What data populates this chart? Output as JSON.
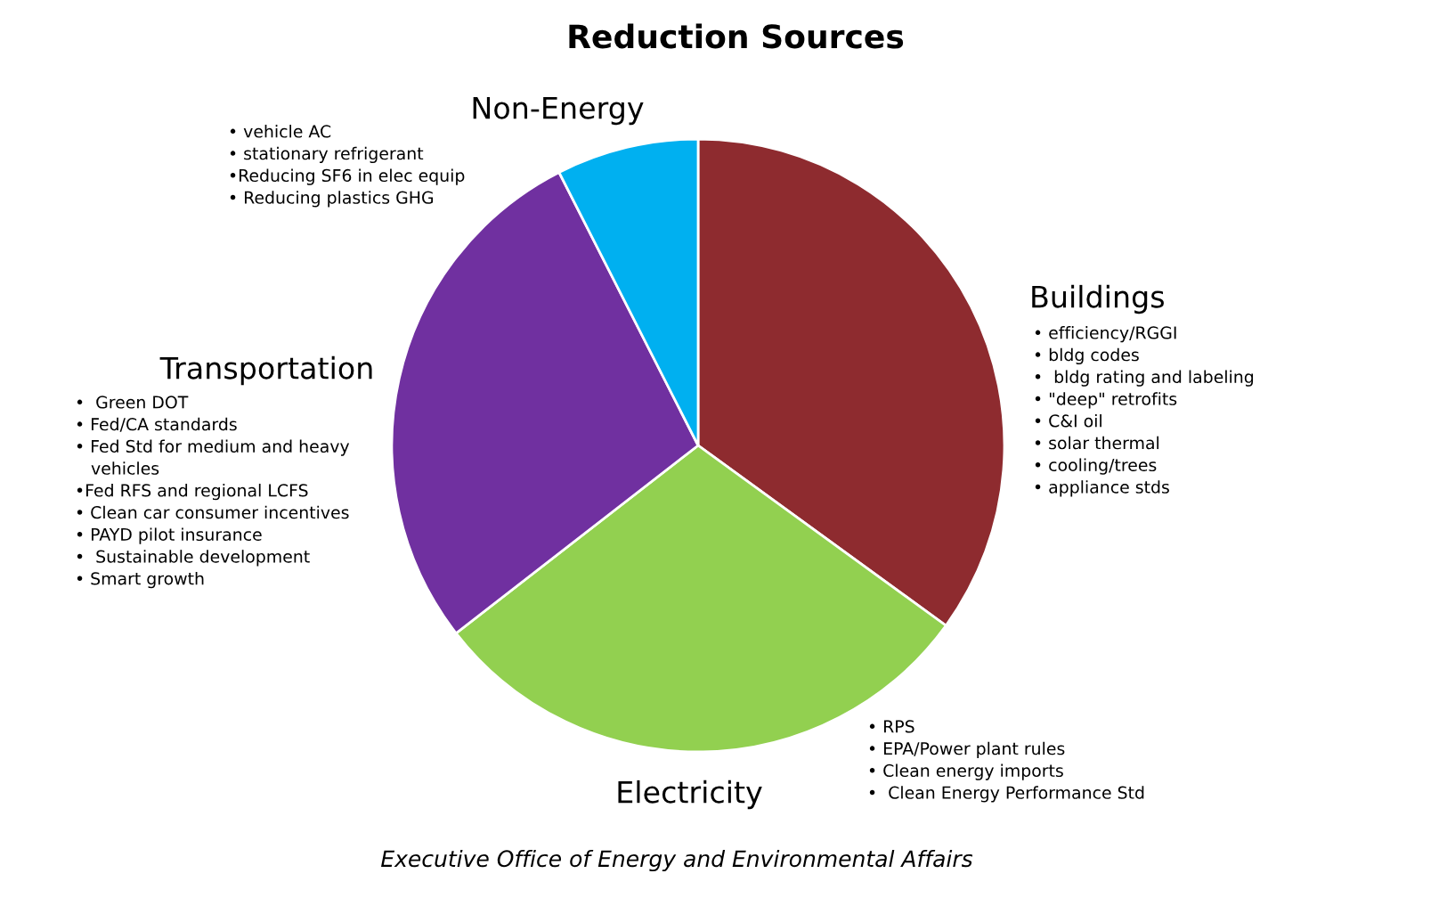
{
  "chart_data": {
    "type": "pie",
    "title": "Reduction Sources",
    "categories": [
      "Buildings",
      "Electricity",
      "Transportation",
      "Non-Energy"
    ],
    "values": [
      35,
      29.5,
      28,
      7.5
    ],
    "colors": [
      "#8e2b2f",
      "#92d050",
      "#7030a0",
      "#00b0f0"
    ],
    "annotations": [
      "• efficiency/RGGI\n• bldg codes\n•  bldg rating and labeling\n• \"deep\" retrofits\n• C&I oil\n• solar thermal\n• cooling/trees\n• appliance stds",
      "• RPS\n• EPA/Power plant rules\n• Clean energy imports\n•  Clean Energy Performance Std",
      "•  Green DOT\n• Fed/CA standards\n• Fed Std for medium and heavy\n   vehicles\n•Fed RFS and regional LCFS\n• Clean car consumer incentives\n• PAYD pilot insurance\n•  Sustainable development\n• Smart growth",
      "• vehicle AC\n• stationary refrigerant\n•Reducing SF6 in elec equip\n• Reducing plastics GHG",
      "Executive Office of Energy and Environmental Affairs"
    ],
    "legend": false
  }
}
